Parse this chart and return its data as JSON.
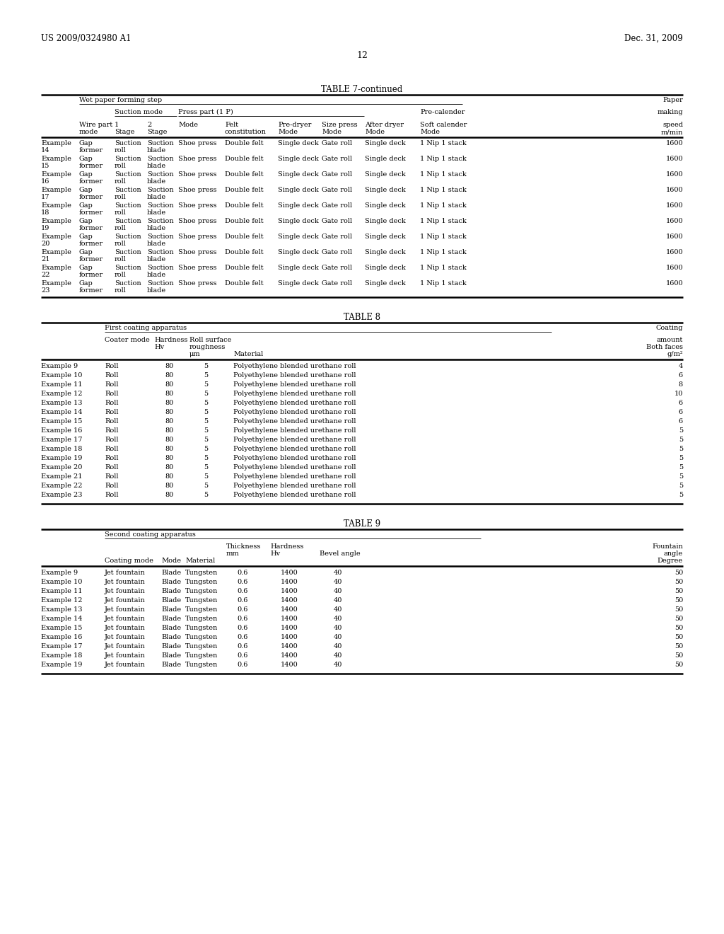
{
  "header_left": "US 2009/0324980 A1",
  "header_right": "Dec. 31, 2009",
  "page_number": "12",
  "table7_title": "TABLE 7-continued",
  "table8_title": "TABLE 8",
  "table9_title": "TABLE 9",
  "background_color": "#ffffff",
  "text_color": "#000000",
  "t7_rows": [
    [
      "Example",
      "14",
      "Gap",
      "former",
      "Suction",
      "roll",
      "Suction",
      "blade",
      "Shoe press",
      "Double felt",
      "Single deck",
      "Gate roll",
      "Single deck",
      "1 Nip 1 stack",
      "1600"
    ],
    [
      "Example",
      "15",
      "Gap",
      "former",
      "Suction",
      "roll",
      "Suction",
      "blade",
      "Shoe press",
      "Double felt",
      "Single deck",
      "Gate roll",
      "Single deck",
      "1 Nip 1 stack",
      "1600"
    ],
    [
      "Example",
      "16",
      "Gap",
      "former",
      "Suction",
      "roll",
      "Suction",
      "blade",
      "Shoe press",
      "Double felt",
      "Single deck",
      "Gate roll",
      "Single deck",
      "1 Nip 1 stack",
      "1600"
    ],
    [
      "Example",
      "17",
      "Gap",
      "former",
      "Suction",
      "roll",
      "Suction",
      "blade",
      "Shoe press",
      "Double felt",
      "Single deck",
      "Gate roll",
      "Single deck",
      "1 Nip 1 stack",
      "1600"
    ],
    [
      "Example",
      "18",
      "Gap",
      "former",
      "Suction",
      "roll",
      "Suction",
      "blade",
      "Shoe press",
      "Double felt",
      "Single deck",
      "Gate roll",
      "Single deck",
      "1 Nip 1 stack",
      "1600"
    ],
    [
      "Example",
      "19",
      "Gap",
      "former",
      "Suction",
      "roll",
      "Suction",
      "blade",
      "Shoe press",
      "Double felt",
      "Single deck",
      "Gate roll",
      "Single deck",
      "1 Nip 1 stack",
      "1600"
    ],
    [
      "Example",
      "20",
      "Gap",
      "former",
      "Suction",
      "roll",
      "Suction",
      "blade",
      "Shoe press",
      "Double felt",
      "Single deck",
      "Gate roll",
      "Single deck",
      "1 Nip 1 stack",
      "1600"
    ],
    [
      "Example",
      "21",
      "Gap",
      "former",
      "Suction",
      "roll",
      "Suction",
      "blade",
      "Shoe press",
      "Double felt",
      "Single deck",
      "Gate roll",
      "Single deck",
      "1 Nip 1 stack",
      "1600"
    ],
    [
      "Example",
      "22",
      "Gap",
      "former",
      "Suction",
      "roll",
      "Suction",
      "blade",
      "Shoe press",
      "Double felt",
      "Single deck",
      "Gate roll",
      "Single deck",
      "1 Nip 1 stack",
      "1600"
    ],
    [
      "Example",
      "23",
      "Gap",
      "former",
      "Suction",
      "roll",
      "Suction",
      "blade",
      "Shoe press",
      "Double felt",
      "Single deck",
      "Gate roll",
      "Single deck",
      "1 Nip 1 stack",
      "1600"
    ]
  ],
  "t8_rows": [
    [
      "Example 9",
      "Roll",
      "80",
      "5",
      "Polyethylene blended urethane roll",
      "4"
    ],
    [
      "Example 10",
      "Roll",
      "80",
      "5",
      "Polyethylene blended urethane roll",
      "6"
    ],
    [
      "Example 11",
      "Roll",
      "80",
      "5",
      "Polyethylene blended urethane roll",
      "8"
    ],
    [
      "Example 12",
      "Roll",
      "80",
      "5",
      "Polyethylene blended urethane roll",
      "10"
    ],
    [
      "Example 13",
      "Roll",
      "80",
      "5",
      "Polyethylene blended urethane roll",
      "6"
    ],
    [
      "Example 14",
      "Roll",
      "80",
      "5",
      "Polyethylene blended urethane roll",
      "6"
    ],
    [
      "Example 15",
      "Roll",
      "80",
      "5",
      "Polyethylene blended urethane roll",
      "6"
    ],
    [
      "Example 16",
      "Roll",
      "80",
      "5",
      "Polyethylene blended urethane roll",
      "5"
    ],
    [
      "Example 17",
      "Roll",
      "80",
      "5",
      "Polyethylene blended urethane roll",
      "5"
    ],
    [
      "Example 18",
      "Roll",
      "80",
      "5",
      "Polyethylene blended urethane roll",
      "5"
    ],
    [
      "Example 19",
      "Roll",
      "80",
      "5",
      "Polyethylene blended urethane roll",
      "5"
    ],
    [
      "Example 20",
      "Roll",
      "80",
      "5",
      "Polyethylene blended urethane roll",
      "5"
    ],
    [
      "Example 21",
      "Roll",
      "80",
      "5",
      "Polyethylene blended urethane roll",
      "5"
    ],
    [
      "Example 22",
      "Roll",
      "80",
      "5",
      "Polyethylene blended urethane roll",
      "5"
    ],
    [
      "Example 23",
      "Roll",
      "80",
      "5",
      "Polyethylene blended urethane roll",
      "5"
    ]
  ],
  "t9_rows": [
    [
      "Example 9",
      "Jet fountain",
      "Blade",
      "Tungsten",
      "0.6",
      "1400",
      "40",
      "50"
    ],
    [
      "Example 10",
      "Jet fountain",
      "Blade",
      "Tungsten",
      "0.6",
      "1400",
      "40",
      "50"
    ],
    [
      "Example 11",
      "Jet fountain",
      "Blade",
      "Tungsten",
      "0.6",
      "1400",
      "40",
      "50"
    ],
    [
      "Example 12",
      "Jet fountain",
      "Blade",
      "Tungsten",
      "0.6",
      "1400",
      "40",
      "50"
    ],
    [
      "Example 13",
      "Jet fountain",
      "Blade",
      "Tungsten",
      "0.6",
      "1400",
      "40",
      "50"
    ],
    [
      "Example 14",
      "Jet fountain",
      "Blade",
      "Tungsten",
      "0.6",
      "1400",
      "40",
      "50"
    ],
    [
      "Example 15",
      "Jet fountain",
      "Blade",
      "Tungsten",
      "0.6",
      "1400",
      "40",
      "50"
    ],
    [
      "Example 16",
      "Jet fountain",
      "Blade",
      "Tungsten",
      "0.6",
      "1400",
      "40",
      "50"
    ],
    [
      "Example 17",
      "Jet fountain",
      "Blade",
      "Tungsten",
      "0.6",
      "1400",
      "40",
      "50"
    ],
    [
      "Example 18",
      "Jet fountain",
      "Blade",
      "Tungsten",
      "0.6",
      "1400",
      "40",
      "50"
    ],
    [
      "Example 19",
      "Jet fountain",
      "Blade",
      "Tungsten",
      "0.6",
      "1400",
      "40",
      "50"
    ]
  ]
}
